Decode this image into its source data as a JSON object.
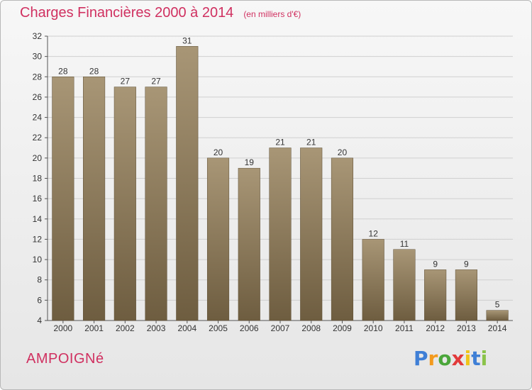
{
  "header": {
    "title": "Charges Financières 2000 à 2014",
    "unit": "(en milliers d'€)"
  },
  "footer": {
    "city": "AMPOIGNé",
    "logo_letters": [
      "P",
      "r",
      "o",
      "x",
      "i",
      "t",
      "i"
    ],
    "logo_colors": [
      "#3f7fd6",
      "#f39a1d",
      "#4aa63a",
      "#e23a3a",
      "#f0c419",
      "#3f7fd6",
      "#8bc34a"
    ]
  },
  "colors": {
    "title": "#d03060",
    "bar_top": "#a89676",
    "bar_bottom": "#6e5d40"
  },
  "chart_data": {
    "type": "bar",
    "title": "Charges Financières 2000 à 2014",
    "subtitle": "(en milliers d'€)",
    "categories": [
      "2000",
      "2001",
      "2002",
      "2003",
      "2004",
      "2005",
      "2006",
      "2007",
      "2008",
      "2009",
      "2010",
      "2011",
      "2012",
      "2013",
      "2014"
    ],
    "values": [
      28,
      28,
      27,
      27,
      31,
      20,
      19,
      21,
      21,
      20,
      12,
      11,
      9,
      9,
      5
    ],
    "ylim": [
      4,
      32
    ],
    "yticks": [
      4,
      6,
      8,
      10,
      12,
      14,
      16,
      18,
      20,
      22,
      24,
      26,
      28,
      30,
      32
    ],
    "grid": true,
    "show_value_labels": true
  }
}
